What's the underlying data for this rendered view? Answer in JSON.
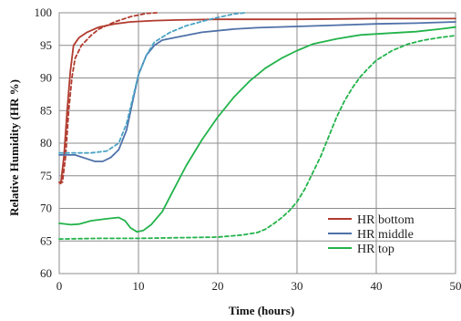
{
  "chart_data": {
    "type": "line",
    "title": "",
    "xlabel": "Time (hours)",
    "ylabel": "Relative Humidity (HR %)",
    "xlim": [
      0,
      50
    ],
    "ylim": [
      60,
      100
    ],
    "xticks": [
      0,
      10,
      20,
      30,
      40,
      50
    ],
    "yticks": [
      60,
      65,
      70,
      75,
      80,
      85,
      90,
      95,
      100
    ],
    "grid": "vertical and horizontal",
    "legend_position": "bottom-right",
    "legend": [
      "HR bottom",
      "HR middle",
      "HR top"
    ],
    "series": [
      {
        "name": "HR bottom",
        "color": "#b13a2e",
        "dash": "solid",
        "points": [
          [
            0,
            74
          ],
          [
            0.2,
            73.8
          ],
          [
            0.6,
            78
          ],
          [
            1,
            85
          ],
          [
            1.4,
            91
          ],
          [
            1.8,
            95
          ],
          [
            2.5,
            96.2
          ],
          [
            3.5,
            97
          ],
          [
            5,
            97.8
          ],
          [
            7,
            98.3
          ],
          [
            9,
            98.6
          ],
          [
            12,
            98.8
          ],
          [
            15,
            98.9
          ],
          [
            20,
            99
          ],
          [
            25,
            99
          ],
          [
            30,
            99
          ],
          [
            40,
            99.1
          ],
          [
            50,
            99.1
          ]
        ]
      },
      {
        "name": "",
        "color": "#b13a2e",
        "dash": "dashed",
        "points": [
          [
            0,
            74
          ],
          [
            0.4,
            74
          ],
          [
            0.8,
            78
          ],
          [
            1.2,
            85
          ],
          [
            1.6,
            90
          ],
          [
            2,
            93
          ],
          [
            2.8,
            95
          ],
          [
            4,
            96.5
          ],
          [
            5,
            97.5
          ],
          [
            7,
            98.6
          ],
          [
            9,
            99.4
          ],
          [
            11,
            99.9
          ],
          [
            12.3,
            100
          ]
        ]
      },
      {
        "name": "HR middle",
        "color": "#4f71a8",
        "dash": "solid",
        "points": [
          [
            0,
            78.2
          ],
          [
            2,
            78.2
          ],
          [
            3.5,
            77.6
          ],
          [
            4.5,
            77.2
          ],
          [
            5.5,
            77.2
          ],
          [
            6.5,
            77.8
          ],
          [
            7.5,
            79
          ],
          [
            8.5,
            82
          ],
          [
            9.2,
            86
          ],
          [
            10,
            90.5
          ],
          [
            11,
            93.5
          ],
          [
            12,
            95
          ],
          [
            13,
            95.8
          ],
          [
            15,
            96.3
          ],
          [
            18,
            97
          ],
          [
            22,
            97.5
          ],
          [
            25,
            97.7
          ],
          [
            30,
            97.9
          ],
          [
            35,
            98.1
          ],
          [
            40,
            98.3
          ],
          [
            45,
            98.4
          ],
          [
            50,
            98.6
          ]
        ]
      },
      {
        "name": "",
        "color": "#4aa3c6",
        "dash": "dashed",
        "points": [
          [
            0,
            78.5
          ],
          [
            2,
            78.5
          ],
          [
            4,
            78.5
          ],
          [
            6,
            78.8
          ],
          [
            7.5,
            80
          ],
          [
            8.5,
            83
          ],
          [
            9.3,
            87
          ],
          [
            10,
            90.5
          ],
          [
            11,
            93.5
          ],
          [
            12,
            95.5
          ],
          [
            14,
            97
          ],
          [
            16,
            98
          ],
          [
            19,
            99
          ],
          [
            22,
            99.8
          ],
          [
            23.5,
            100
          ]
        ]
      },
      {
        "name": "HR top",
        "color": "#22b34a",
        "dash": "solid",
        "points": [
          [
            0,
            67.7
          ],
          [
            1.5,
            67.5
          ],
          [
            2.5,
            67.6
          ],
          [
            4,
            68.1
          ],
          [
            6,
            68.4
          ],
          [
            7.5,
            68.6
          ],
          [
            8.3,
            68.1
          ],
          [
            9,
            67
          ],
          [
            9.8,
            66.4
          ],
          [
            10.6,
            66.6
          ],
          [
            11.6,
            67.5
          ],
          [
            13,
            69.5
          ],
          [
            14.5,
            73
          ],
          [
            16,
            76.5
          ],
          [
            18,
            80.5
          ],
          [
            20,
            84
          ],
          [
            22,
            87
          ],
          [
            24,
            89.5
          ],
          [
            26,
            91.5
          ],
          [
            28,
            93
          ],
          [
            30,
            94.2
          ],
          [
            32,
            95.2
          ],
          [
            35,
            96
          ],
          [
            38,
            96.6
          ],
          [
            42,
            96.9
          ],
          [
            45,
            97.1
          ],
          [
            48,
            97.5
          ],
          [
            50,
            97.8
          ]
        ]
      },
      {
        "name": "",
        "color": "#22b34a",
        "dash": "dashed",
        "points": [
          [
            0,
            65.3
          ],
          [
            5,
            65.4
          ],
          [
            10,
            65.4
          ],
          [
            15,
            65.5
          ],
          [
            20,
            65.6
          ],
          [
            23,
            65.9
          ],
          [
            25,
            66.3
          ],
          [
            26,
            66.8
          ],
          [
            27,
            67.6
          ],
          [
            28,
            68.5
          ],
          [
            29,
            69.6
          ],
          [
            30,
            71
          ],
          [
            31,
            73
          ],
          [
            32,
            75.5
          ],
          [
            33,
            78
          ],
          [
            34,
            81
          ],
          [
            35,
            84
          ],
          [
            36,
            86.5
          ],
          [
            37,
            88.5
          ],
          [
            38,
            90.2
          ],
          [
            39,
            91.5
          ],
          [
            40,
            92.7
          ],
          [
            42,
            94.2
          ],
          [
            44,
            95.2
          ],
          [
            46,
            95.8
          ],
          [
            48,
            96.2
          ],
          [
            50,
            96.5
          ]
        ]
      }
    ]
  }
}
